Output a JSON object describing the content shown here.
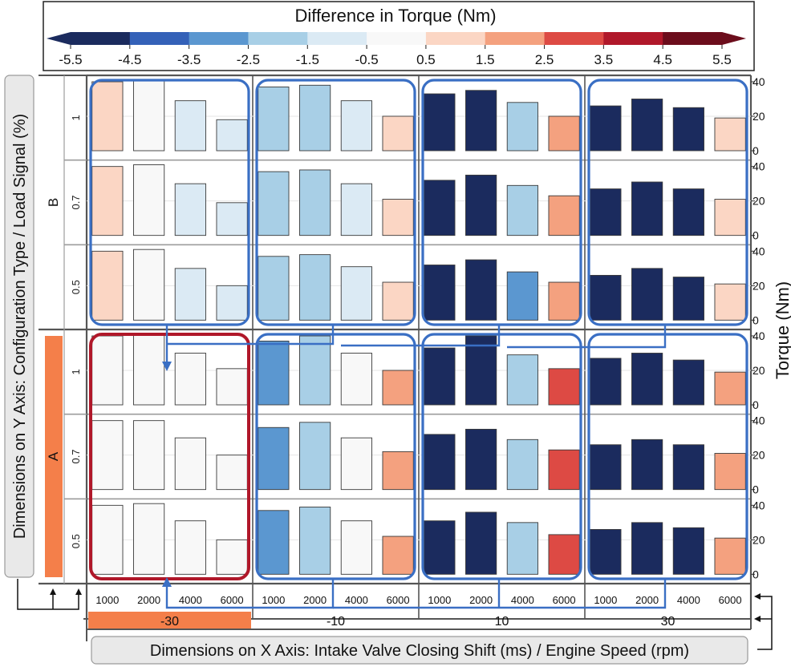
{
  "chart_data": {
    "type": "bar",
    "title": "Difference in Torque (Nm)",
    "colorbar": {
      "ticks": [
        "-5.5",
        "-4.5",
        "-3.5",
        "-2.5",
        "-1.5",
        "-0.5",
        "0.5",
        "1.5",
        "2.5",
        "3.5",
        "4.5",
        "5.5"
      ],
      "colors": [
        "#1b2b5e",
        "#3461b8",
        "#5b97d0",
        "#a8cfe6",
        "#dbeaf4",
        "#f8f8f8",
        "#fbd6c4",
        "#f4a17f",
        "#dd4a44",
        "#b0182a",
        "#6c0d1c"
      ]
    },
    "x_axis_title": "Dimensions on X Axis: Intake Valve Closing Shift (ms) / Engine Speed (rpm)",
    "y_axis_title": "Dimensions on Y Axis: Configuration Type / Load Signal (%)",
    "right_axis_title": "Torque (Nm)",
    "ylim": [
      0,
      40
    ],
    "yticks": [
      "0",
      "20",
      "40"
    ],
    "config_types": [
      "B",
      "A"
    ],
    "load_signals": [
      "1",
      "0.7",
      "0.5"
    ],
    "ivc_shifts": [
      "-30",
      "-10",
      "10",
      "30"
    ],
    "engine_speeds": [
      "1000",
      "2000",
      "4000",
      "6000"
    ],
    "highlighted_config": "A",
    "highlighted_ivc": "-30",
    "highlight_color": "#f47f4a",
    "frame_color_blue": "#3a6fc4",
    "frame_color_red": "#b0182a",
    "panels": [
      {
        "config": "B",
        "load": "1",
        "ivc": "-30",
        "torque": [
          40,
          41,
          29,
          18
        ],
        "diff": [
          1.2,
          0.0,
          -1.3,
          -1.3
        ]
      },
      {
        "config": "B",
        "load": "1",
        "ivc": "-10",
        "torque": [
          37,
          38,
          29,
          20
        ],
        "diff": [
          -2.2,
          -2.3,
          -1.0,
          1.0
        ]
      },
      {
        "config": "B",
        "load": "1",
        "ivc": "10",
        "torque": [
          33,
          35,
          28,
          20
        ],
        "diff": [
          -5.5,
          -5.5,
          -2.0,
          1.6
        ]
      },
      {
        "config": "B",
        "load": "1",
        "ivc": "30",
        "torque": [
          26,
          30,
          25,
          19
        ],
        "diff": [
          -5.5,
          -5.5,
          -5.5,
          0.8
        ]
      },
      {
        "config": "B",
        "load": "0.7",
        "ivc": "-30",
        "torque": [
          40,
          41,
          30,
          19
        ],
        "diff": [
          1.2,
          0.0,
          -1.3,
          -1.3
        ]
      },
      {
        "config": "B",
        "load": "0.7",
        "ivc": "-10",
        "torque": [
          37,
          38,
          30,
          21
        ],
        "diff": [
          -2.2,
          -2.3,
          -1.0,
          1.0
        ]
      },
      {
        "config": "B",
        "load": "0.7",
        "ivc": "10",
        "torque": [
          32,
          35,
          29,
          23
        ],
        "diff": [
          -5.5,
          -5.5,
          -2.0,
          1.6
        ]
      },
      {
        "config": "B",
        "load": "0.7",
        "ivc": "30",
        "torque": [
          27,
          31,
          27,
          21
        ],
        "diff": [
          -5.5,
          -5.5,
          -5.5,
          0.8
        ]
      },
      {
        "config": "B",
        "load": "0.5",
        "ivc": "-30",
        "torque": [
          40,
          41,
          30,
          20
        ],
        "diff": [
          1.2,
          0.0,
          -1.3,
          -1.3
        ]
      },
      {
        "config": "B",
        "load": "0.5",
        "ivc": "-10",
        "torque": [
          37,
          38,
          31,
          22
        ],
        "diff": [
          -2.2,
          -2.3,
          -1.0,
          1.0
        ]
      },
      {
        "config": "B",
        "load": "0.5",
        "ivc": "10",
        "torque": [
          32,
          35,
          28,
          22
        ],
        "diff": [
          -5.5,
          -5.5,
          -2.6,
          1.6
        ]
      },
      {
        "config": "B",
        "load": "0.5",
        "ivc": "30",
        "torque": [
          26,
          30,
          25,
          21
        ],
        "diff": [
          -5.5,
          -5.5,
          -5.5,
          0.8
        ]
      },
      {
        "config": "A",
        "load": "1",
        "ivc": "-30",
        "torque": [
          40,
          41,
          30,
          21
        ],
        "diff": [
          0.0,
          0.0,
          0.0,
          0.0
        ]
      },
      {
        "config": "A",
        "load": "1",
        "ivc": "-10",
        "torque": [
          37,
          40,
          30,
          20
        ],
        "diff": [
          -3.0,
          -2.2,
          -0.3,
          1.8
        ]
      },
      {
        "config": "A",
        "load": "1",
        "ivc": "10",
        "torque": [
          33,
          40,
          29,
          21
        ],
        "diff": [
          -5.5,
          -5.5,
          -2.0,
          3.0
        ]
      },
      {
        "config": "A",
        "load": "1",
        "ivc": "30",
        "torque": [
          27,
          30,
          26,
          19
        ],
        "diff": [
          -5.5,
          -5.5,
          -5.5,
          1.8
        ]
      },
      {
        "config": "A",
        "load": "0.7",
        "ivc": "-30",
        "torque": [
          40,
          40,
          30,
          20
        ],
        "diff": [
          0.0,
          0.0,
          0.0,
          0.0
        ]
      },
      {
        "config": "A",
        "load": "0.7",
        "ivc": "-10",
        "torque": [
          36,
          39,
          30,
          22
        ],
        "diff": [
          -3.0,
          -2.2,
          -0.3,
          1.8
        ]
      },
      {
        "config": "A",
        "load": "0.7",
        "ivc": "10",
        "torque": [
          32,
          35,
          29,
          23
        ],
        "diff": [
          -5.5,
          -5.5,
          -2.0,
          3.0
        ]
      },
      {
        "config": "A",
        "load": "0.7",
        "ivc": "30",
        "torque": [
          26,
          29,
          26,
          21
        ],
        "diff": [
          -5.5,
          -5.5,
          -5.5,
          1.8
        ]
      },
      {
        "config": "A",
        "load": "0.5",
        "ivc": "-30",
        "torque": [
          40,
          41,
          31,
          20
        ],
        "diff": [
          0.0,
          0.0,
          0.0,
          0.0
        ]
      },
      {
        "config": "A",
        "load": "0.5",
        "ivc": "-10",
        "torque": [
          37,
          39,
          31,
          22
        ],
        "diff": [
          -3.0,
          -2.2,
          -0.3,
          1.8
        ]
      },
      {
        "config": "A",
        "load": "0.5",
        "ivc": "10",
        "torque": [
          31,
          36,
          30,
          23
        ],
        "diff": [
          -5.5,
          -5.5,
          -2.0,
          3.0
        ]
      },
      {
        "config": "A",
        "load": "0.5",
        "ivc": "30",
        "torque": [
          26,
          30,
          27,
          21
        ],
        "diff": [
          -5.5,
          -5.5,
          -5.5,
          1.8
        ]
      }
    ]
  }
}
